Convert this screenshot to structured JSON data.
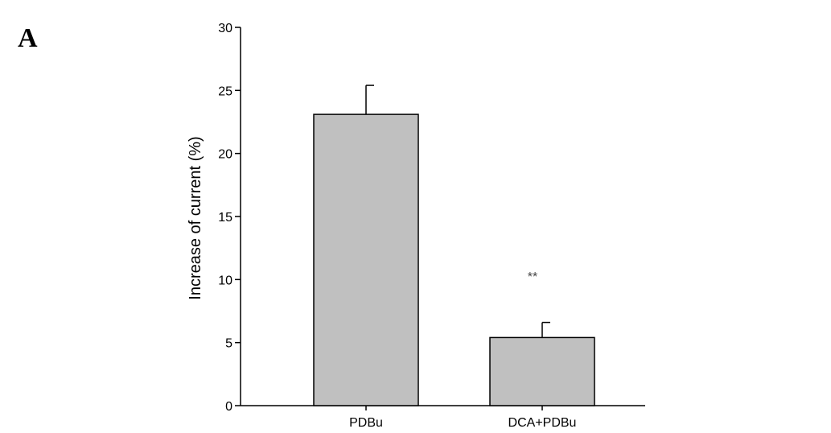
{
  "panel_label": "A",
  "chart_data": {
    "type": "bar",
    "categories": [
      "PDBu",
      "DCA+PDBu"
    ],
    "values": [
      23.1,
      5.4
    ],
    "errors": [
      2.3,
      1.2
    ],
    "annotations": [
      "",
      "**"
    ],
    "title": "",
    "xlabel": "",
    "ylabel": "Increase of current (%)",
    "ylim": [
      0,
      30
    ],
    "yticks": [
      0,
      5,
      10,
      15,
      20,
      25,
      30
    ],
    "grid": false,
    "bar_color": "#c0c0c0",
    "edge_color": "#000000"
  }
}
